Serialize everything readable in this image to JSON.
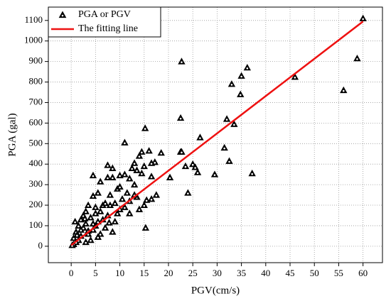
{
  "chart_data": {
    "type": "scatter",
    "x_label": "PGV(cm/s)",
    "y_label": "PGA (gal)",
    "xlim": [
      -4.7,
      64
    ],
    "ylim": [
      -80,
      1165
    ],
    "xticks": [
      0,
      5,
      10,
      15,
      20,
      25,
      30,
      35,
      40,
      45,
      50,
      55,
      60
    ],
    "yticks": [
      0,
      100,
      200,
      300,
      400,
      500,
      600,
      700,
      800,
      900,
      1000,
      1100
    ],
    "grid": true,
    "legend": "upper left",
    "series": [
      {
        "name": "PGA or PGV",
        "type": "scatter",
        "color": "#000000",
        "x": [
          60,
          58.8,
          56,
          46,
          37.2,
          36.2,
          35,
          34.8,
          33,
          33.5,
          32.5,
          32,
          31.5,
          29.5,
          26.5,
          26,
          25.5,
          25,
          24,
          23.5,
          22.7,
          22.5,
          22.5,
          22.7,
          20.3,
          18.5,
          17.5,
          17.2,
          16.5,
          16,
          16.5,
          15.2,
          15.3,
          15,
          14.5,
          14,
          14.5,
          13.5,
          13,
          12.5,
          13,
          12,
          11,
          11,
          10,
          9.5,
          8.5,
          8.5,
          7.5,
          7.5,
          6,
          5.5,
          4.5,
          4.5,
          3.5,
          15.5,
          16.5,
          15,
          14,
          13.5,
          12,
          11.5,
          11,
          10.5,
          9.5,
          9,
          8.5,
          8,
          7.5,
          7,
          6.5,
          6,
          5.5,
          5,
          4.5,
          4,
          3.5,
          3,
          3,
          2.5,
          2,
          2,
          1.5,
          1.5,
          1,
          1,
          0.5,
          0.5,
          0.2,
          0.8,
          2.5,
          4,
          3,
          5,
          6,
          7,
          10,
          12,
          13,
          10,
          8,
          9,
          5,
          6.5,
          4.5,
          2,
          1.2,
          3.5,
          5.5,
          2.8,
          7.8
        ],
        "values": [
          1110,
          915,
          760,
          825,
          355,
          870,
          830,
          740,
          790,
          595,
          415,
          620,
          480,
          350,
          530,
          360,
          385,
          400,
          260,
          390,
          900,
          625,
          460,
          460,
          335,
          455,
          250,
          410,
          405,
          465,
          340,
          575,
          90,
          390,
          460,
          440,
          355,
          370,
          405,
          380,
          300,
          330,
          505,
          350,
          345,
          280,
          335,
          380,
          335,
          395,
          315,
          260,
          345,
          245,
          200,
          225,
          230,
          200,
          180,
          240,
          220,
          260,
          190,
          230,
          160,
          120,
          70,
          200,
          150,
          90,
          200,
          170,
          120,
          160,
          80,
          140,
          60,
          110,
          170,
          90,
          130,
          50,
          100,
          30,
          70,
          20,
          40,
          10,
          5,
          120,
          150,
          30,
          20,
          100,
          60,
          210,
          290,
          160,
          250,
          180,
          250,
          210,
          190,
          130,
          110,
          80,
          55,
          75,
          45,
          135,
          115
        ]
      },
      {
        "name": "The fitting line",
        "type": "line",
        "color": "#ee1111",
        "x": [
          0,
          60
        ],
        "values": [
          5,
          1095
        ]
      }
    ]
  }
}
